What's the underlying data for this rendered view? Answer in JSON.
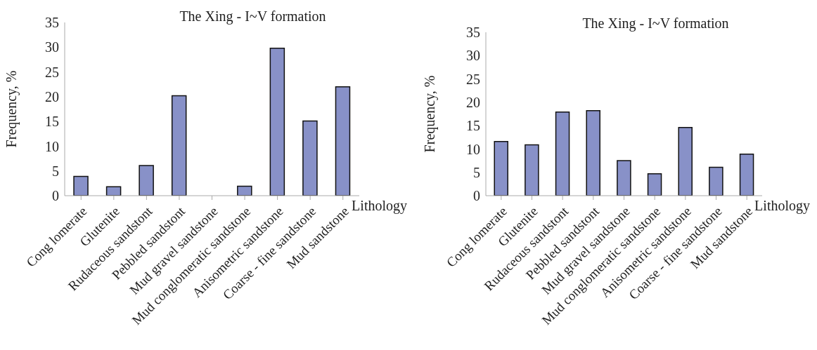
{
  "chart_data": [
    {
      "type": "bar",
      "title": "The Xing - I~V formation",
      "xlabel": "Lithology",
      "ylabel": "Frequency, %",
      "categories": [
        "Cong lomerate",
        "Glutenite",
        "Rudaceous sandstont",
        "Pebbled sandstont",
        "Mud gravel sandstone",
        "Mud conglomeratic sandstone",
        "Anisometric sandstone",
        "Coarse - fine sandstone",
        "Mud sandstone"
      ],
      "values": [
        3.9,
        1.8,
        6.1,
        20.2,
        0,
        1.9,
        29.8,
        15.1,
        22
      ],
      "color": "#8891c8",
      "ylim": [
        0,
        35
      ],
      "yticks": [
        0,
        5,
        10,
        15,
        20,
        25,
        30,
        35
      ],
      "grid": false
    },
    {
      "type": "bar",
      "title": "The Xing - I~V formation",
      "xlabel": "Lithology",
      "ylabel": "Frequency, %",
      "categories": [
        "Cong lomerate",
        "Glutenite",
        "Rudaceous sandstont",
        "Pebbled sandstont",
        "Mud gravel sandstone",
        "Mud conglomeratic sandstone",
        "Anisometric sandstone",
        "Coarse - fine sandstone",
        "Mud sandstone"
      ],
      "values": [
        11.6,
        10.9,
        17.9,
        18.2,
        7.5,
        4.7,
        14.6,
        6.1,
        8.9
      ],
      "color": "#8891c8",
      "ylim": [
        0,
        35
      ],
      "yticks": [
        0,
        5,
        10,
        15,
        20,
        25,
        30,
        35
      ],
      "grid": false
    }
  ]
}
